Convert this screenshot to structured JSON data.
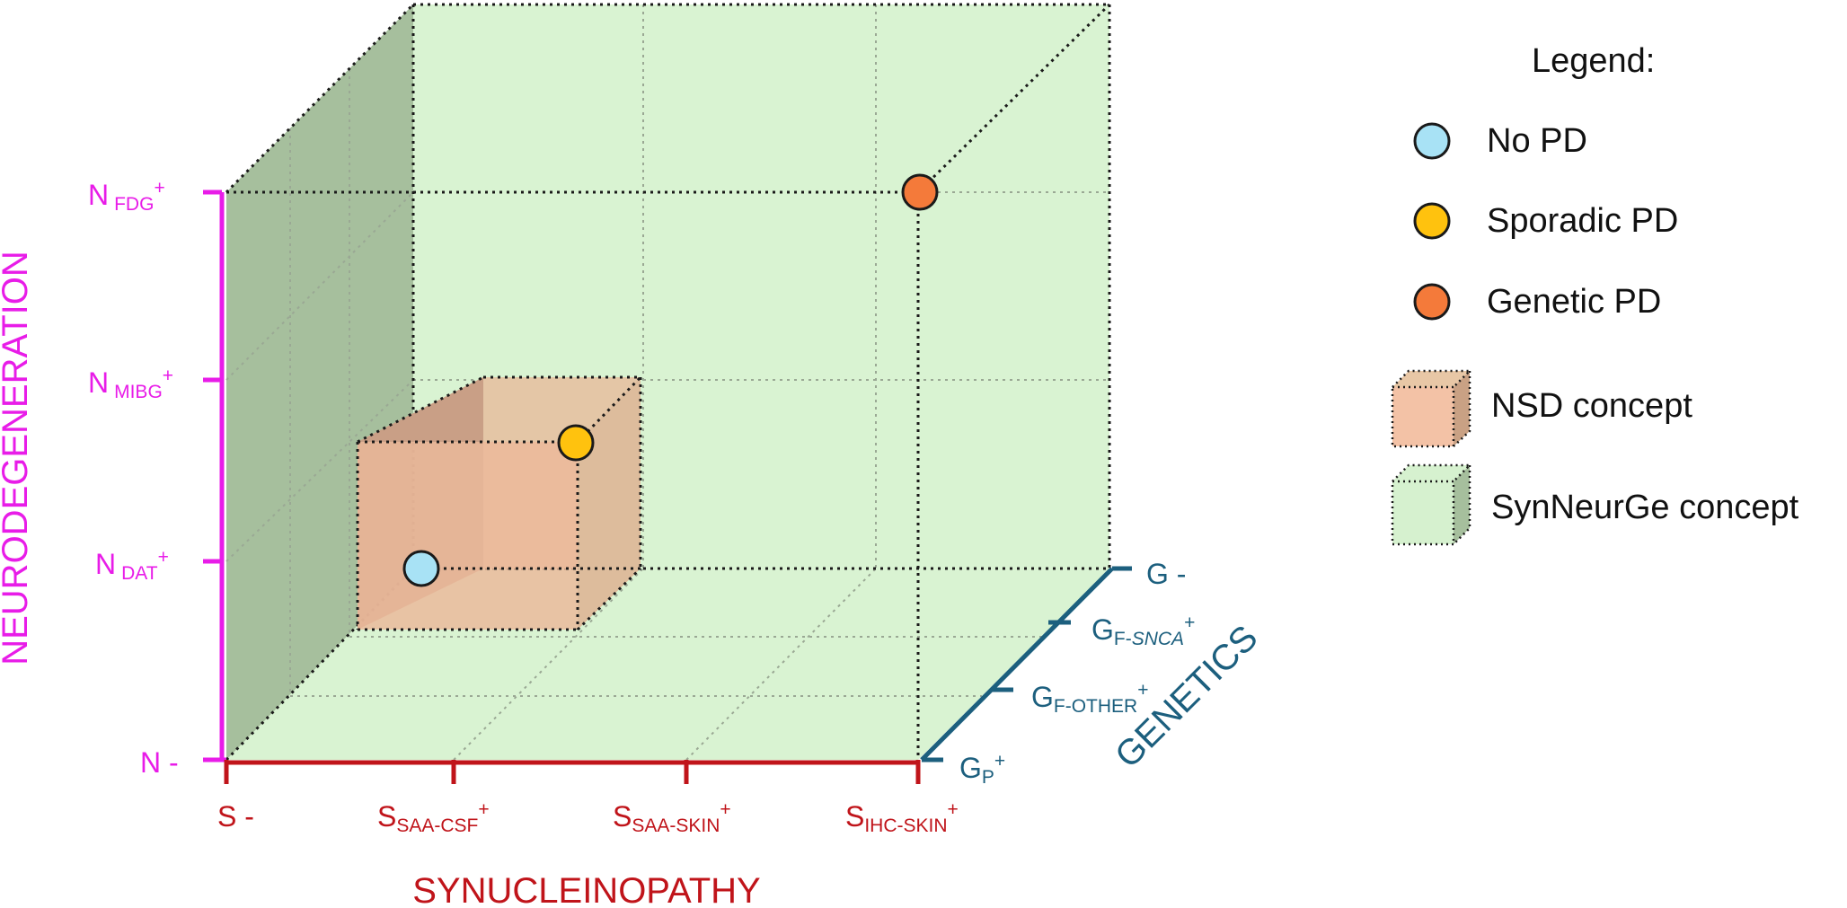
{
  "axes": {
    "neurodegeneration": {
      "title": "NEURODEGENERATION",
      "color": "#e81ce8",
      "ticks": [
        {
          "main": "N",
          "sub": "FDG",
          "sup": "+"
        },
        {
          "main": "N",
          "sub": "MIBG",
          "sup": "+"
        },
        {
          "main": "N",
          "sub": "DAT",
          "sup": "+"
        },
        {
          "main": "N -",
          "sub": "",
          "sup": ""
        }
      ]
    },
    "synucleinopathy": {
      "title": "SYNUCLEINOPATHY",
      "color": "#c0141a",
      "ticks": [
        {
          "main": "S -",
          "sub": "",
          "sup": ""
        },
        {
          "main": "S",
          "sub": "SAA-CSF",
          "sup": "+"
        },
        {
          "main": "S",
          "sub": "SAA-SKIN",
          "sup": "+"
        },
        {
          "main": "S",
          "sub": "IHC-SKIN",
          "sup": "+"
        }
      ]
    },
    "genetics": {
      "title": "GENETICS",
      "color": "#1c5f7e",
      "ticks": [
        {
          "main": "G -",
          "sub": "",
          "sub_italic": "",
          "sup": ""
        },
        {
          "main": "G",
          "sub": "F-",
          "sub_italic": "SNCA",
          "sup": "+"
        },
        {
          "main": "G",
          "sub": "F-OTHER",
          "sub_italic": "",
          "sup": "+"
        },
        {
          "main": "G",
          "sub": "P",
          "sub_italic": "",
          "sup": "+"
        }
      ]
    }
  },
  "legend": {
    "title": "Legend:",
    "items": [
      {
        "label": "No PD",
        "color": "#a8e2f5",
        "shape": "circle"
      },
      {
        "label": "Sporadic PD",
        "color": "#ffc20e",
        "shape": "circle"
      },
      {
        "label": "Genetic PD",
        "color": "#f47a3a",
        "shape": "circle"
      },
      {
        "label": "NSD concept",
        "color": "#f3c2a6",
        "shape": "cube"
      },
      {
        "label": "SynNeurGe concept",
        "color": "#d6f1cf",
        "shape": "cube"
      }
    ]
  },
  "colors": {
    "cube_face": "#d9f3d2",
    "cube_side": "#a6bf9d",
    "nsd_face": "#eabf9f"
  }
}
